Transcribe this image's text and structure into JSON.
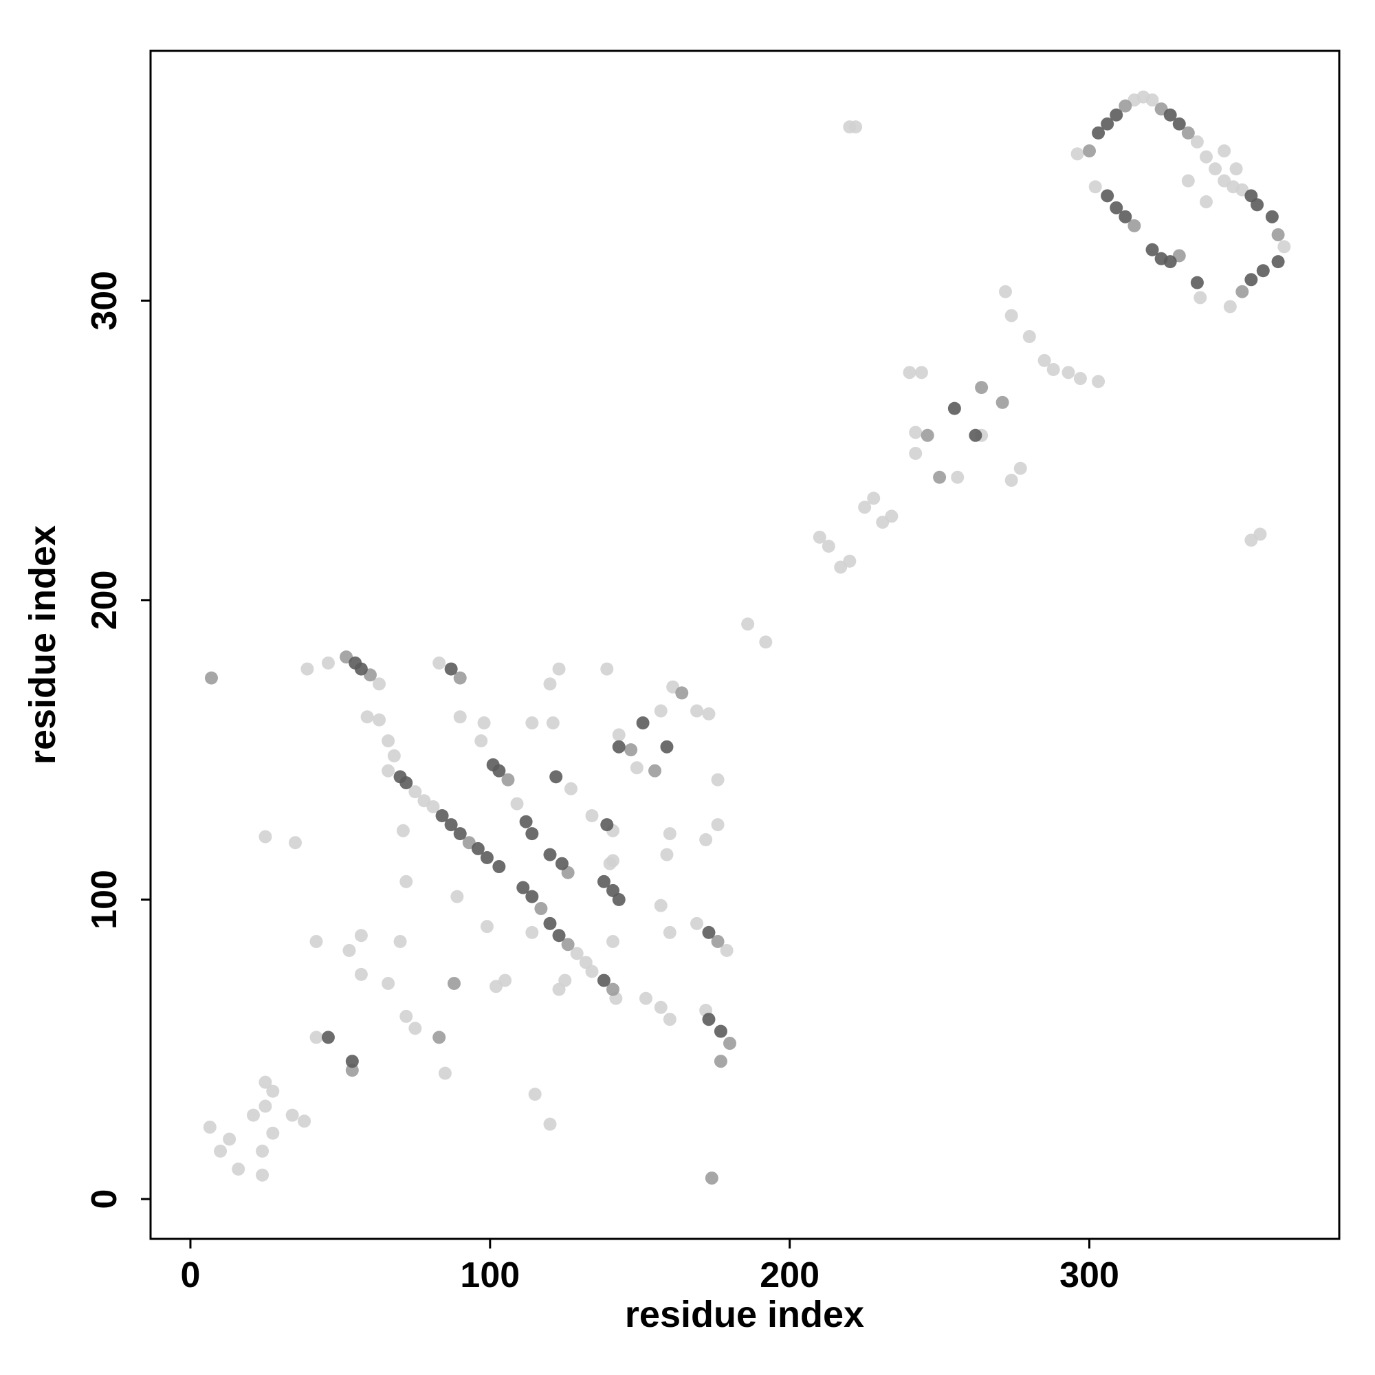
{
  "chart_data": {
    "type": "scatter",
    "xlabel": "residue index",
    "ylabel": "residue index",
    "xlim": [
      -13.3,
      383.4
    ],
    "ylim": [
      -13.3,
      383.4
    ],
    "xticks": [
      0,
      100,
      200,
      300
    ],
    "yticks": [
      0,
      100,
      200,
      300
    ],
    "grid": false,
    "series": [
      {
        "color": "#d2d2d2",
        "x": [
          6.5,
          10,
          13,
          16,
          21,
          24,
          24,
          25,
          25,
          27.5,
          27.5,
          34,
          38,
          25,
          35,
          42,
          39,
          46,
          63,
          59,
          63,
          66,
          68,
          66,
          75,
          78,
          81,
          109,
          129,
          132,
          134,
          142,
          83,
          90,
          98,
          97,
          114,
          121,
          120,
          123,
          139,
          127,
          134,
          141,
          141,
          140,
          143,
          149,
          157,
          161,
          169,
          173,
          160,
          159,
          157,
          160,
          169,
          179,
          176,
          176,
          172,
          152,
          157,
          160,
          172,
          72,
          75,
          70,
          72,
          71,
          66,
          57,
          53,
          57,
          42,
          85,
          89,
          99,
          105,
          102,
          125,
          123,
          115,
          120,
          141,
          114,
          186,
          192,
          210,
          213,
          217,
          220,
          225,
          228,
          231,
          234,
          220,
          222,
          240,
          244,
          242,
          242,
          256,
          264,
          274,
          277,
          272,
          274,
          280,
          285,
          288,
          293,
          297,
          303,
          296,
          315,
          318,
          321,
          336,
          339,
          342,
          345,
          333,
          339,
          302,
          337,
          348,
          351,
          365,
          347,
          349,
          345,
          357,
          354
        ],
        "y": [
          24,
          16,
          20,
          10,
          28,
          16,
          8,
          39,
          31,
          36,
          22,
          28,
          26,
          121,
          119,
          54,
          177,
          179,
          172,
          161,
          160,
          153,
          148,
          143,
          136,
          133,
          131,
          132,
          82,
          79,
          76,
          67,
          179,
          161,
          159,
          153,
          159,
          159,
          172,
          177,
          177,
          137,
          128,
          123,
          113,
          112,
          155,
          144,
          163,
          171,
          163,
          162,
          122,
          115,
          98,
          89,
          92,
          83,
          140,
          125,
          120,
          67,
          64,
          60,
          63,
          61,
          57,
          86,
          106,
          123,
          72,
          75,
          83,
          88,
          86,
          42,
          101,
          91,
          73,
          71,
          73,
          70,
          35,
          25,
          86,
          89,
          192,
          186,
          221,
          218,
          211,
          213,
          231,
          234,
          226,
          228,
          358,
          358,
          276,
          276,
          256,
          249,
          241,
          255,
          240,
          244,
          303,
          295,
          288,
          280,
          277,
          276,
          274,
          273,
          349,
          367,
          368,
          367,
          353,
          348,
          344,
          340,
          340,
          333,
          338,
          301,
          338,
          337,
          318,
          298,
          344,
          350,
          222,
          220
        ]
      },
      {
        "color": "#9c9c9c",
        "x": [
          7,
          174,
          54,
          52,
          60,
          93,
          106,
          117,
          126,
          141,
          126,
          90,
          147,
          155,
          164,
          176,
          180,
          177,
          246,
          250,
          264,
          271,
          300,
          312,
          324,
          333,
          315,
          330,
          363,
          351,
          88,
          83
        ],
        "y": [
          174,
          7,
          43,
          181,
          175,
          119,
          140,
          97,
          85,
          70,
          109,
          174,
          150,
          143,
          169,
          86,
          52,
          46,
          255,
          241,
          271,
          266,
          350,
          365,
          364,
          356,
          325,
          315,
          322,
          303,
          72,
          54
        ]
      },
      {
        "color": "#5c5c5c",
        "x": [
          46,
          54,
          55,
          57,
          70,
          72,
          84,
          87,
          90,
          96,
          99,
          103,
          101,
          103,
          112,
          114,
          111,
          114,
          120,
          123,
          138,
          120,
          124,
          138,
          141,
          143,
          87,
          122,
          139,
          143,
          151,
          159,
          173,
          173,
          177,
          255,
          262,
          303,
          306,
          309,
          327,
          330,
          306,
          309,
          312,
          321,
          324,
          327,
          336,
          354,
          356,
          361,
          363,
          358,
          354
        ],
        "y": [
          54,
          46,
          179,
          177,
          141,
          139,
          128,
          125,
          122,
          117,
          114,
          111,
          145,
          143,
          126,
          122,
          104,
          101,
          92,
          88,
          73,
          115,
          112,
          106,
          103,
          100,
          177,
          141,
          125,
          151,
          159,
          151,
          89,
          60,
          56,
          264,
          255,
          356,
          359,
          362,
          362,
          359,
          335,
          331,
          328,
          317,
          314,
          313,
          306,
          335,
          332,
          328,
          313,
          310,
          307
        ]
      }
    ]
  }
}
